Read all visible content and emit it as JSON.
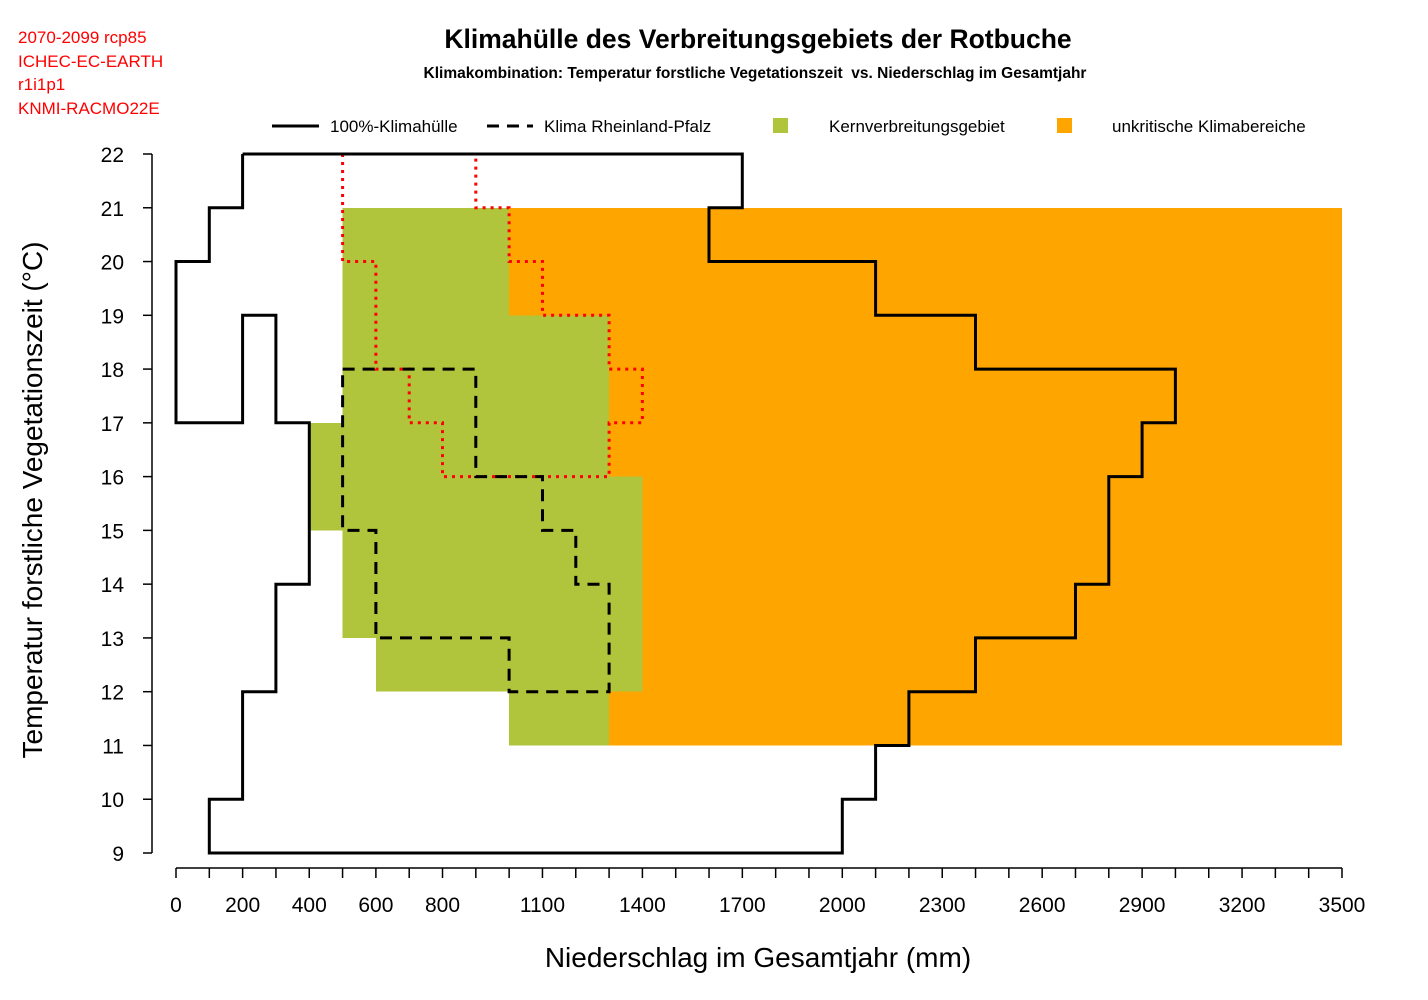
{
  "meta_lines": [
    "2070-2099 rcp85",
    "ICHEC-EC-EARTH",
    "r1i1p1",
    "KNMI-RACMO22E"
  ],
  "colors": {
    "kern": "#b0c43c",
    "unkritisch": "#ffa500",
    "hull": "#000000",
    "rlp": "#000000",
    "red": "#ff0000",
    "meta": "#ff0000"
  },
  "chart_data": {
    "type": "area",
    "title": "Klimahülle des Verbreitungsgebiets der Rotbuche",
    "subtitle": "Klimakombination: Temperatur forstliche Vegetationszeit  vs. Niederschlag im Gesamtjahr",
    "xlabel": "Niederschlag im Gesamtjahr (mm)",
    "ylabel": "Temperatur forstliche Vegetationszeit (°C)",
    "xlim": [
      0,
      3500
    ],
    "ylim": [
      9,
      22
    ],
    "x_major_ticks": [
      0,
      200,
      400,
      600,
      800,
      1100,
      1400,
      1700,
      2000,
      2300,
      2600,
      2900,
      3200,
      3500
    ],
    "x_minor_step": 100,
    "y_ticks": [
      9,
      10,
      11,
      12,
      13,
      14,
      15,
      16,
      17,
      18,
      19,
      20,
      21,
      22
    ],
    "legend": {
      "position": "top",
      "items": [
        {
          "label": "100%-Klimahülle",
          "kind": "line-solid"
        },
        {
          "label": "Klima Rheinland-Pfalz",
          "kind": "line-dashed"
        },
        {
          "label": "Kernverbreitungsgebiet",
          "kind": "square-kern"
        },
        {
          "label": "unkritische Klimabereiche",
          "kind": "square-unkritisch"
        }
      ]
    },
    "unkritisch_rects": [
      {
        "x0": 1000,
        "x1": 3500,
        "y0": 11,
        "y1": 21
      }
    ],
    "kern_rects": [
      {
        "x0": 500,
        "x1": 1000,
        "y0": 20,
        "y1": 21
      },
      {
        "x0": 500,
        "x1": 1000,
        "y0": 19,
        "y1": 20
      },
      {
        "x0": 500,
        "x1": 1300,
        "y0": 18,
        "y1": 19
      },
      {
        "x0": 500,
        "x1": 1300,
        "y0": 17,
        "y1": 18
      },
      {
        "x0": 500,
        "x1": 1300,
        "y0": 16,
        "y1": 17
      },
      {
        "x0": 400,
        "x1": 500,
        "y0": 15,
        "y1": 17
      },
      {
        "x0": 500,
        "x1": 1400,
        "y0": 15,
        "y1": 16
      },
      {
        "x0": 500,
        "x1": 1400,
        "y0": 14,
        "y1": 15
      },
      {
        "x0": 500,
        "x1": 1400,
        "y0": 13,
        "y1": 14
      },
      {
        "x0": 600,
        "x1": 1400,
        "y0": 12,
        "y1": 13
      },
      {
        "x0": 1000,
        "x1": 1300,
        "y0": 11,
        "y1": 12
      }
    ],
    "klimahuelle_100": [
      [
        200,
        22
      ],
      [
        1700,
        22
      ],
      [
        1700,
        21
      ],
      [
        1600,
        21
      ],
      [
        1600,
        20
      ],
      [
        2100,
        20
      ],
      [
        2100,
        19
      ],
      [
        2400,
        19
      ],
      [
        2400,
        18
      ],
      [
        3000,
        18
      ],
      [
        3000,
        17
      ],
      [
        2900,
        17
      ],
      [
        2900,
        16
      ],
      [
        2800,
        16
      ],
      [
        2800,
        14
      ],
      [
        2700,
        14
      ],
      [
        2700,
        13
      ],
      [
        2400,
        13
      ],
      [
        2400,
        12
      ],
      [
        2200,
        12
      ],
      [
        2200,
        11
      ],
      [
        2100,
        11
      ],
      [
        2100,
        10
      ],
      [
        2000,
        10
      ],
      [
        2000,
        9
      ],
      [
        100,
        9
      ],
      [
        100,
        10
      ],
      [
        200,
        10
      ],
      [
        200,
        12
      ],
      [
        300,
        12
      ],
      [
        300,
        14
      ],
      [
        400,
        14
      ],
      [
        400,
        17
      ],
      [
        300,
        17
      ],
      [
        300,
        19
      ],
      [
        200,
        19
      ],
      [
        200,
        17
      ],
      [
        0,
        17
      ],
      [
        0,
        20
      ],
      [
        100,
        20
      ],
      [
        100,
        21
      ],
      [
        200,
        21
      ],
      [
        200,
        22
      ]
    ],
    "klima_rlp": [
      [
        500,
        18
      ],
      [
        900,
        18
      ],
      [
        900,
        16
      ],
      [
        1100,
        16
      ],
      [
        1100,
        15
      ],
      [
        1200,
        15
      ],
      [
        1200,
        14
      ],
      [
        1300,
        14
      ],
      [
        1300,
        12
      ],
      [
        1000,
        12
      ],
      [
        1000,
        13
      ],
      [
        600,
        13
      ],
      [
        600,
        15
      ],
      [
        500,
        15
      ],
      [
        500,
        18
      ]
    ],
    "red_dotted": [
      [
        500,
        22
      ],
      [
        500,
        20
      ],
      [
        600,
        20
      ],
      [
        600,
        18
      ],
      [
        700,
        18
      ],
      [
        700,
        17
      ],
      [
        800,
        17
      ],
      [
        800,
        16
      ],
      [
        1300,
        16
      ],
      [
        1300,
        17
      ],
      [
        1400,
        17
      ],
      [
        1400,
        18
      ],
      [
        1300,
        18
      ],
      [
        1300,
        19
      ],
      [
        1100,
        19
      ],
      [
        1100,
        20
      ],
      [
        1000,
        20
      ],
      [
        1000,
        21
      ],
      [
        900,
        21
      ],
      [
        900,
        22
      ]
    ]
  }
}
